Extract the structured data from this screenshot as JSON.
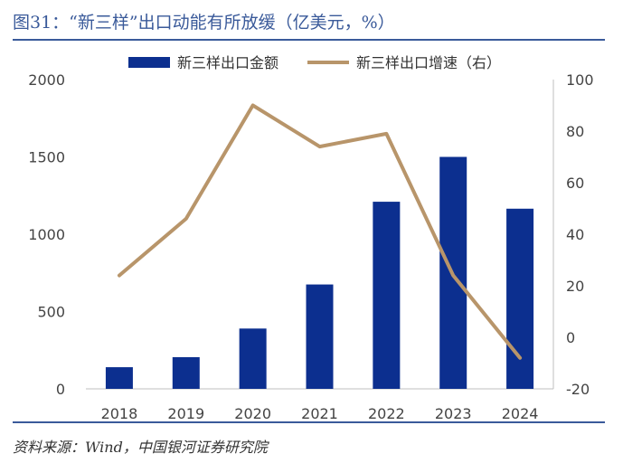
{
  "header": {
    "title": "图31：“新三样”出口动能有所放缓（亿美元，%）"
  },
  "footer": {
    "source": "资料来源：Wind，中国银河证券研究院"
  },
  "chart_data": {
    "type": "bar",
    "title": "图31：“新三样”出口动能有所放缓（亿美元，%）",
    "categories": [
      "2018",
      "2019",
      "2020",
      "2021",
      "2022",
      "2023",
      "2024"
    ],
    "series": [
      {
        "name": "新三样出口金额",
        "kind": "bar",
        "axis": "left",
        "values": [
          140,
          205,
          390,
          675,
          1210,
          1500,
          1165
        ],
        "color": "#0c2f8f"
      },
      {
        "name": "新三样出口增速（右）",
        "kind": "line",
        "axis": "right",
        "values": [
          24,
          46,
          90,
          74,
          79,
          24,
          -8
        ],
        "color": "#b8956a"
      }
    ],
    "y_left": {
      "min": 0,
      "max": 2000,
      "ticks": [
        0,
        500,
        1000,
        1500,
        2000
      ],
      "tick_labels": [
        "0",
        "500",
        "1000",
        "1500",
        "2000"
      ]
    },
    "y_right": {
      "min": -20,
      "max": 100,
      "ticks": [
        -20,
        0,
        20,
        40,
        60,
        80,
        100
      ],
      "tick_labels": [
        "-20",
        "0",
        "20",
        "40",
        "60",
        "80",
        "100"
      ]
    },
    "legend": {
      "position": "top",
      "entries": [
        "新三样出口金额",
        "新三样出口增速（右）"
      ]
    },
    "grid": false
  }
}
